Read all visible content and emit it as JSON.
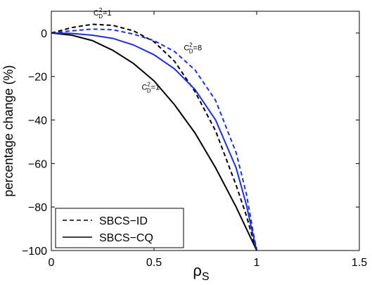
{
  "chart_data": {
    "type": "line",
    "xlabel": "ρS",
    "ylabel": "percentage change (%)",
    "xlim": [
      0,
      1.5
    ],
    "ylim": [
      -100,
      10
    ],
    "xticks": [
      0,
      0.5,
      1,
      1.5
    ],
    "xtick_labels": [
      "0",
      "0.5",
      "1",
      "1.5"
    ],
    "yticks": [
      -100,
      -80,
      -60,
      -40,
      -20,
      0
    ],
    "ytick_labels": [
      "−100",
      "−80",
      "−60",
      "−40",
      "−20",
      "0"
    ],
    "grid": false,
    "legend_position": "bottom-left",
    "legend": [
      {
        "label": "SBCS−ID",
        "style": "dashed"
      },
      {
        "label": "SBCS−CQ",
        "style": "solid"
      }
    ],
    "series": [
      {
        "legend_style": "dashed",
        "color": "#000000",
        "dash": true,
        "x": [
          0,
          0.1,
          0.2,
          0.3,
          0.4,
          0.5,
          0.6,
          0.7,
          0.8,
          0.9,
          0.95,
          0.98,
          1.0
        ],
        "y": [
          0,
          2.5,
          4,
          3.5,
          1,
          -4,
          -13,
          -27,
          -45,
          -70,
          -84,
          -94,
          -100
        ]
      },
      {
        "legend_style": "solid",
        "color": "#000000",
        "dash": false,
        "x": [
          0,
          0.1,
          0.2,
          0.3,
          0.4,
          0.5,
          0.6,
          0.7,
          0.8,
          0.9,
          0.95,
          0.98,
          1.0
        ],
        "y": [
          0,
          -1,
          -3.5,
          -8,
          -14,
          -22,
          -33,
          -46,
          -62,
          -80,
          -90,
          -96,
          -100
        ]
      },
      {
        "legend_style": "dashed",
        "color": "#1f2fd6",
        "dash": true,
        "x": [
          0,
          0.1,
          0.2,
          0.3,
          0.4,
          0.5,
          0.6,
          0.7,
          0.8,
          0.9,
          0.95,
          0.98,
          1.0
        ],
        "y": [
          0,
          1,
          1.8,
          1.5,
          -0.5,
          -3.5,
          -8.5,
          -17,
          -31,
          -55,
          -74,
          -90,
          -100
        ]
      },
      {
        "legend_style": "solid",
        "color": "#1f2fd6",
        "dash": false,
        "x": [
          0,
          0.1,
          0.2,
          0.3,
          0.4,
          0.5,
          0.6,
          0.7,
          0.8,
          0.9,
          0.95,
          0.98,
          1.0
        ],
        "y": [
          0,
          -0.2,
          -1,
          -2.5,
          -5.5,
          -10,
          -16.5,
          -26,
          -40,
          -62,
          -79,
          -92,
          -100
        ]
      }
    ],
    "annotations": [
      {
        "text": "C",
        "sup": "2",
        "sub": "D",
        "value": "=1",
        "x": 0.205,
        "y": 8
      },
      {
        "text": "C",
        "sup": "2",
        "sub": "D",
        "value": "=8",
        "x": 0.645,
        "y": -8
      },
      {
        "text": "C",
        "sup": "2",
        "sub": "D",
        "value": "=1",
        "x": 0.44,
        "y": -26
      }
    ]
  }
}
